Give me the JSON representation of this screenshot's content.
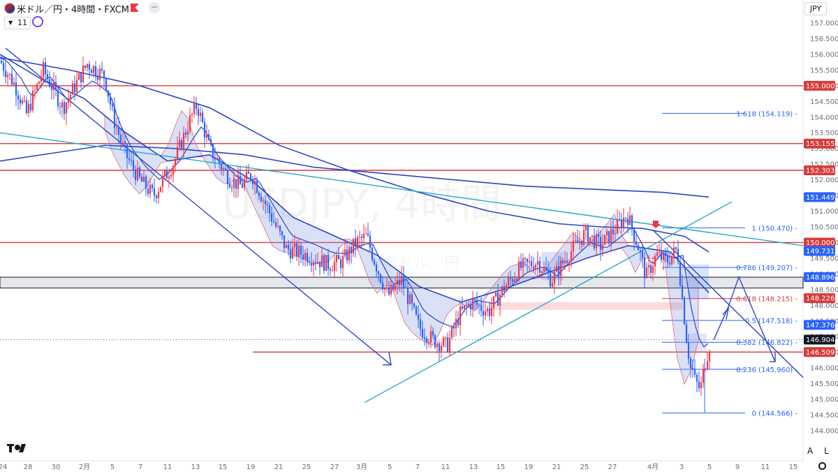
{
  "header": {
    "title": "米ドル／円・4時間・FXCM",
    "collapse_count": "11",
    "currency": "JPY",
    "auto_label": "A",
    "log_label": "L"
  },
  "watermark": {
    "symbol": "USDJPY, 4時間",
    "sub": "米ドル／円"
  },
  "colors": {
    "up": "#f23645",
    "down": "#2962ff",
    "line": "#2a46c7",
    "hline": "#d93a3a",
    "teal": "#22a8c9",
    "fib": "#2962ff",
    "current": "#131722",
    "band": "#131722"
  },
  "chart_data": {
    "type": "candlestick",
    "y_axis": {
      "min": 144.0,
      "max": 157.2,
      "ticks": [
        "157.000",
        "156.500",
        "156.000",
        "155.500",
        "155.000",
        "154.500",
        "154.000",
        "153.500",
        "153.000",
        "152.500",
        "152.000",
        "151.500",
        "151.000",
        "150.500",
        "150.000",
        "149.500",
        "149.000",
        "148.500",
        "148.000",
        "147.500",
        "147.000",
        "146.500",
        "146.000",
        "145.500",
        "145.000",
        "144.500",
        "144.000"
      ]
    },
    "x_axis": {
      "ticks": [
        {
          "x": 4,
          "label": "24"
        },
        {
          "x": 40,
          "label": "28"
        },
        {
          "x": 80,
          "label": "30"
        },
        {
          "x": 121,
          "label": "2月"
        },
        {
          "x": 161,
          "label": "5"
        },
        {
          "x": 201,
          "label": "7"
        },
        {
          "x": 240,
          "label": "11"
        },
        {
          "x": 280,
          "label": "13"
        },
        {
          "x": 319,
          "label": "15"
        },
        {
          "x": 359,
          "label": "19"
        },
        {
          "x": 399,
          "label": "21"
        },
        {
          "x": 439,
          "label": "25"
        },
        {
          "x": 479,
          "label": "27"
        },
        {
          "x": 518,
          "label": "3月"
        },
        {
          "x": 558,
          "label": "5"
        },
        {
          "x": 598,
          "label": "7"
        },
        {
          "x": 638,
          "label": "11"
        },
        {
          "x": 678,
          "label": "13"
        },
        {
          "x": 717,
          "label": "15"
        },
        {
          "x": 757,
          "label": "19"
        },
        {
          "x": 797,
          "label": "21"
        },
        {
          "x": 837,
          "label": "25"
        },
        {
          "x": 877,
          "label": "27"
        },
        {
          "x": 935,
          "label": "4月"
        },
        {
          "x": 976,
          "label": "3"
        },
        {
          "x": 1016,
          "label": "5"
        },
        {
          "x": 1056,
          "label": "9"
        },
        {
          "x": 1096,
          "label": "11"
        },
        {
          "x": 1136,
          "label": "15"
        }
      ]
    },
    "price_waypoints": [
      [
        0,
        155.8
      ],
      [
        22,
        155.0
      ],
      [
        38,
        154.1
      ],
      [
        62,
        155.5
      ],
      [
        90,
        154.3
      ],
      [
        125,
        155.7
      ],
      [
        150,
        155.3
      ],
      [
        162,
        154.0
      ],
      [
        180,
        152.8
      ],
      [
        200,
        152.0
      ],
      [
        220,
        151.5
      ],
      [
        250,
        152.6
      ],
      [
        270,
        153.8
      ],
      [
        282,
        154.4
      ],
      [
        300,
        153.0
      ],
      [
        330,
        152.0
      ],
      [
        345,
        151.8
      ],
      [
        360,
        152.2
      ],
      [
        385,
        151.0
      ],
      [
        410,
        149.8
      ],
      [
        440,
        149.6
      ],
      [
        470,
        149.3
      ],
      [
        490,
        149.4
      ],
      [
        510,
        150.0
      ],
      [
        525,
        150.2
      ],
      [
        535,
        149.5
      ],
      [
        555,
        148.3
      ],
      [
        575,
        148.8
      ],
      [
        600,
        147.3
      ],
      [
        620,
        146.9
      ],
      [
        640,
        146.7
      ],
      [
        658,
        147.7
      ],
      [
        675,
        148.1
      ],
      [
        700,
        147.8
      ],
      [
        720,
        148.5
      ],
      [
        745,
        149.2
      ],
      [
        770,
        149.4
      ],
      [
        790,
        148.8
      ],
      [
        810,
        149.5
      ],
      [
        838,
        150.3
      ],
      [
        860,
        149.9
      ],
      [
        880,
        150.4
      ],
      [
        898,
        150.9
      ],
      [
        915,
        149.8
      ],
      [
        925,
        148.9
      ],
      [
        940,
        149.6
      ],
      [
        955,
        149.4
      ],
      [
        970,
        149.8
      ],
      [
        978,
        148.0
      ],
      [
        985,
        146.6
      ],
      [
        995,
        145.6
      ],
      [
        1003,
        145.3
      ],
      [
        1010,
        146.2
      ],
      [
        1018,
        146.9
      ]
    ],
    "horizontal_levels": [
      {
        "price": 155.0,
        "label": "155.000"
      },
      {
        "price": 153.155,
        "label": "153.155"
      },
      {
        "price": 152.303,
        "label": "152.303"
      },
      {
        "price": 150.0,
        "label": "150.000"
      },
      {
        "price": 146.509,
        "label": "146.509"
      }
    ],
    "axis_badges": [
      {
        "price": 151.449,
        "label": "151.449",
        "color": "#2962ff"
      },
      {
        "price": 149.731,
        "label": "149.731",
        "color": "#2962ff"
      },
      {
        "price": 148.896,
        "label": "148.896",
        "color": "#2962ff"
      },
      {
        "price": 148.226,
        "label": "148.226",
        "color": "#d93a3a"
      },
      {
        "price": 147.376,
        "label": "147.376",
        "color": "#2962ff"
      },
      {
        "price": 146.904,
        "label": "146.904",
        "color": "#131722"
      }
    ],
    "support_band": {
      "top": 148.896,
      "bottom": 148.55
    },
    "fibonacci": [
      {
        "ratio": "1.618",
        "price": 154.119,
        "label": "1.618 (154.119)"
      },
      {
        "ratio": "1",
        "price": 150.47,
        "label": "1 (150.470)"
      },
      {
        "ratio": "0.786",
        "price": 149.207,
        "label": "0.786 (149.207)"
      },
      {
        "ratio": "0.618",
        "price": 148.215,
        "label": "0.618 (148.215)"
      },
      {
        "ratio": "0.5",
        "price": 147.518,
        "label": "0.5 (147.518)"
      },
      {
        "ratio": "0.382",
        "price": 146.822,
        "label": "0.382 (146.822)"
      },
      {
        "ratio": "0.236",
        "price": 145.96,
        "label": "0.236 (145.960)"
      },
      {
        "ratio": "0",
        "price": 144.566,
        "label": "0 (144.566)"
      }
    ],
    "moving_averages": [
      {
        "points": [
          [
            0,
            155.9
          ],
          [
            100,
            155.5
          ],
          [
            200,
            155.0
          ],
          [
            300,
            154.3
          ],
          [
            400,
            153.1
          ],
          [
            500,
            152.3
          ],
          [
            600,
            151.6
          ],
          [
            700,
            151.0
          ],
          [
            800,
            150.6
          ],
          [
            860,
            150.5
          ],
          [
            920,
            150.45
          ],
          [
            980,
            150.2
          ],
          [
            1015,
            149.7
          ]
        ]
      },
      {
        "points": [
          [
            0,
            152.6
          ],
          [
            150,
            153.1
          ],
          [
            250,
            153.0
          ],
          [
            350,
            152.8
          ],
          [
            450,
            152.4
          ],
          [
            550,
            152.2
          ],
          [
            650,
            152.0
          ],
          [
            750,
            151.8
          ],
          [
            850,
            151.7
          ],
          [
            950,
            151.6
          ],
          [
            1015,
            151.45
          ]
        ]
      },
      {
        "points": [
          [
            0,
            156.0
          ],
          [
            60,
            155.2
          ],
          [
            120,
            154.6
          ],
          [
            180,
            153.5
          ],
          [
            240,
            152.6
          ],
          [
            300,
            152.8
          ],
          [
            360,
            152.0
          ],
          [
            420,
            150.8
          ],
          [
            480,
            150.2
          ],
          [
            540,
            149.6
          ],
          [
            600,
            148.6
          ],
          [
            660,
            148.1
          ],
          [
            720,
            148.5
          ],
          [
            780,
            149.0
          ],
          [
            840,
            149.5
          ],
          [
            900,
            149.9
          ],
          [
            960,
            149.7
          ],
          [
            1015,
            148.4
          ]
        ]
      }
    ]
  }
}
